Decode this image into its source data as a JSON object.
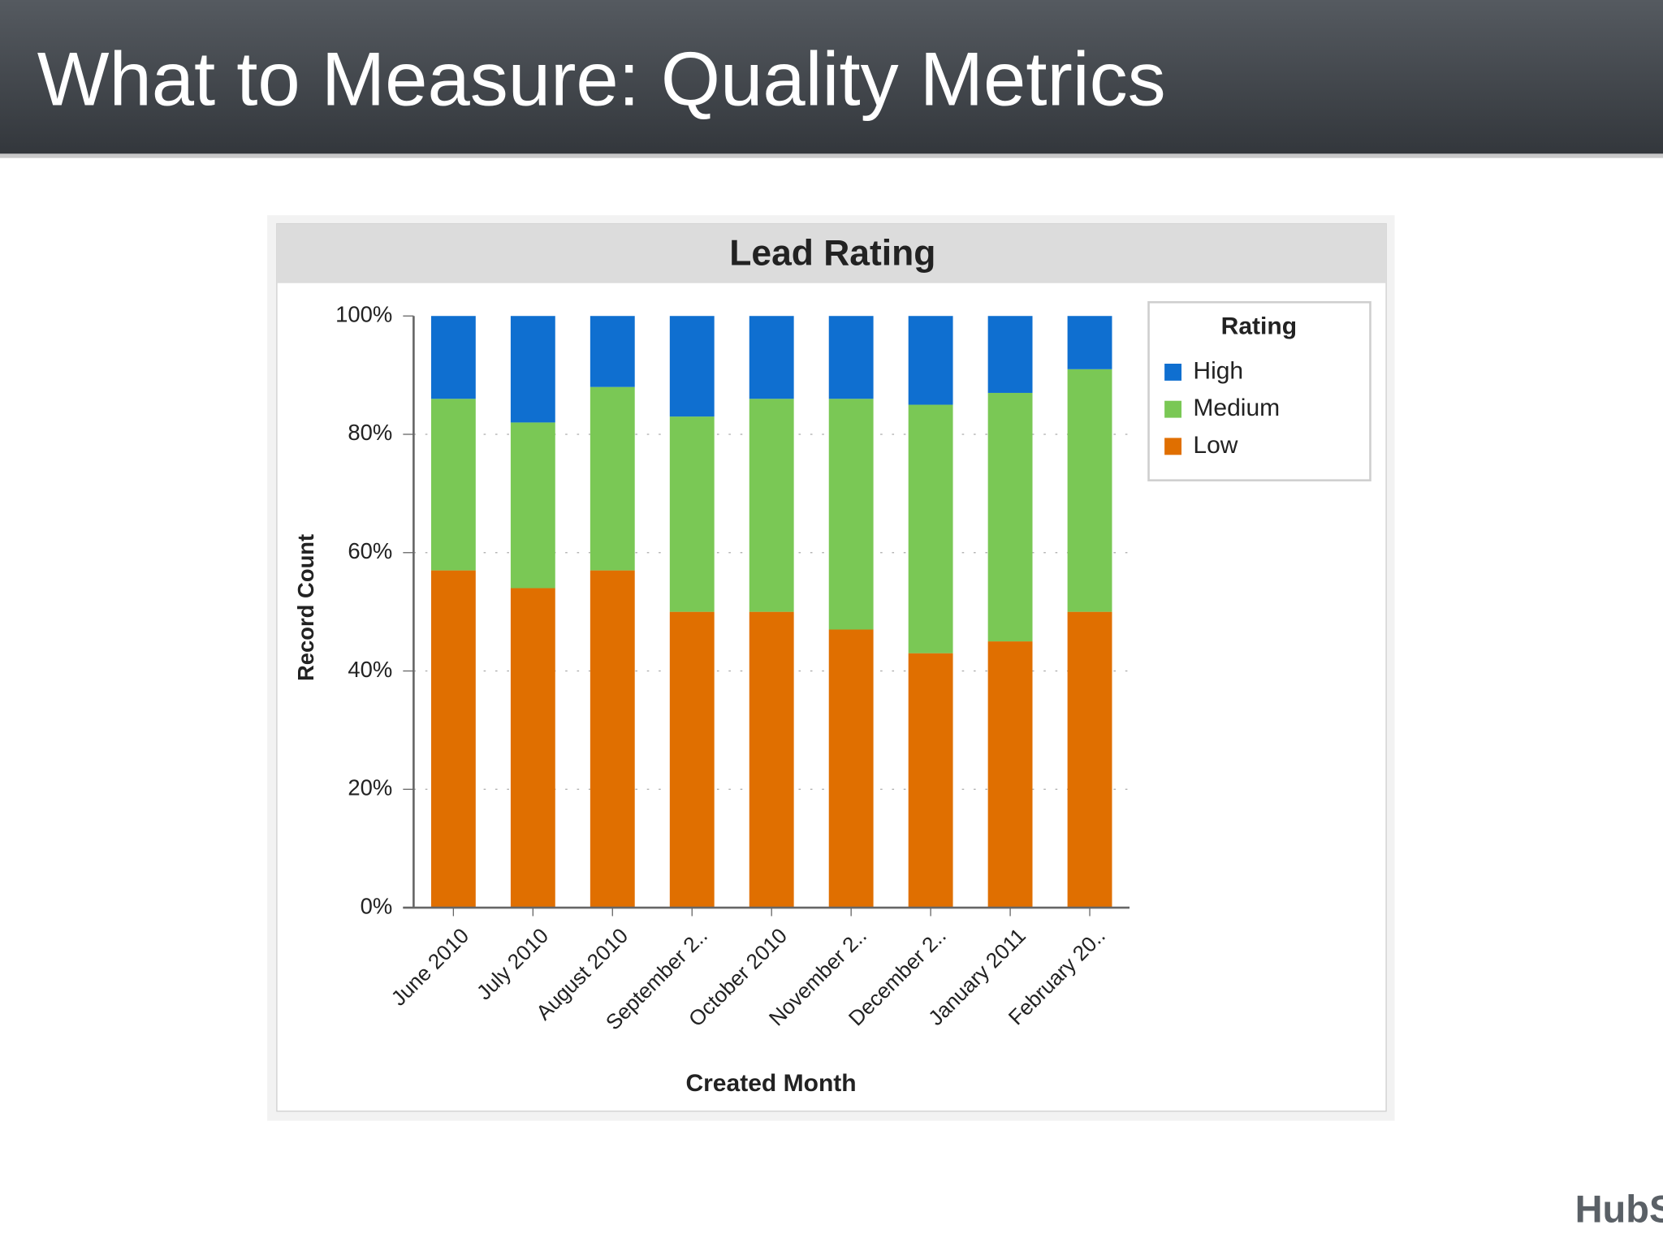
{
  "slide": {
    "title": "What to Measure: Quality Metrics",
    "logo": "HubSpot"
  },
  "chart_data": {
    "type": "stacked_bar",
    "title": "Lead Rating",
    "x_label": "Created Month",
    "y_label": "Record Count",
    "categories": [
      "June 2010",
      "July 2010",
      "August 2010",
      "September 2..",
      "October 2010",
      "November 2..",
      "December 2..",
      "January 2011",
      "February 20.."
    ],
    "series": [
      {
        "name": "High",
        "color": "#0f6fd0",
        "values": [
          14,
          18,
          12,
          17,
          14,
          14,
          15,
          13,
          9
        ]
      },
      {
        "name": "Medium",
        "color": "#7ac855",
        "values": [
          29,
          28,
          31,
          33,
          36,
          39,
          42,
          42,
          41
        ]
      },
      {
        "name": "Low",
        "color": "#e06f00",
        "values": [
          57,
          54,
          57,
          50,
          50,
          47,
          43,
          45,
          50
        ]
      }
    ],
    "ylim": [
      0,
      100
    ],
    "yticks": [
      {
        "value": 0,
        "label": "0%"
      },
      {
        "value": 20,
        "label": "20%"
      },
      {
        "value": 40,
        "label": "40%"
      },
      {
        "value": 60,
        "label": "60%"
      },
      {
        "value": 80,
        "label": "80%"
      },
      {
        "value": 100,
        "label": "100%"
      }
    ],
    "grid": true,
    "legend_title": "Rating",
    "legend_position": "right"
  }
}
